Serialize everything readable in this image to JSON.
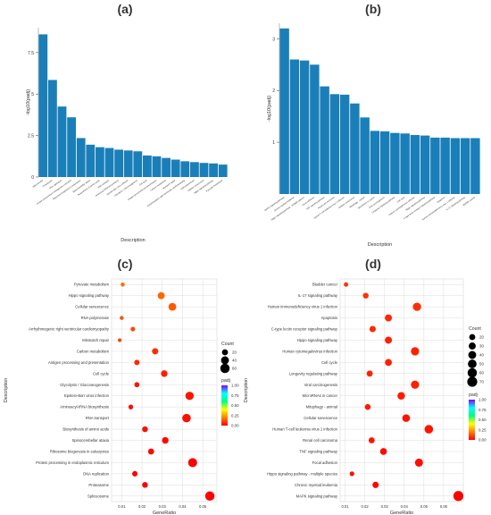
{
  "colors": {
    "bar": "#1a7fb8",
    "panel_bg": "#ebebeb",
    "grid": "#ffffff",
    "grid_fine": "#dddddd",
    "padj_scale": [
      "#ff0000",
      "#ff8000",
      "#ffff00",
      "#00ff80",
      "#00ffff",
      "#8000ff"
    ]
  },
  "chart_data": [
    {
      "panel": "(a)",
      "type": "bar",
      "xlabel": "Description",
      "ylabel": "-log10(padj)",
      "ylim": [
        0,
        9
      ],
      "yticks": [
        0,
        2.5,
        5,
        7.5
      ],
      "grid": false,
      "categories": [
        "Spliceosome",
        "Proteasome",
        "DNA replication",
        "Protein processing in endoplasmic reticulum",
        "Ribosome biogenesis in eukaryotes",
        "Spinocerebellar ataxia",
        "Biosynthesis of amino acids",
        "RNA transport",
        "Aminoacyl-tRNA biosynthesis",
        "Epstein-Barr virus infection",
        "Glycolysis / Gluconeogenesis",
        "Cell cycle",
        "Antigen processing and presentation",
        "Carbon metabolism",
        "Mismatch repair",
        "Arrhythmogenic right ventricular cardiomyopathy",
        "RNA polymerase",
        "Cellular senescence",
        "Hippo signaling pathway",
        "Pyruvate metabolism"
      ],
      "values": [
        8.6,
        5.85,
        4.25,
        3.6,
        2.35,
        1.95,
        1.8,
        1.75,
        1.65,
        1.6,
        1.55,
        1.3,
        1.25,
        1.15,
        1.05,
        0.95,
        0.9,
        0.85,
        0.82,
        0.75
      ]
    },
    {
      "panel": "(b)",
      "type": "bar",
      "xlabel": "Description",
      "ylabel": "-log10(padj)",
      "ylim": [
        0,
        3.3
      ],
      "yticks": [
        1,
        2,
        3
      ],
      "grid": false,
      "categories": [
        "MAPK signaling pathway",
        "Chronic myeloid leukemia",
        "Hippo signaling pathway - multiple species",
        "Focal adhesion",
        "TNF signaling pathway",
        "Renal cell carcinoma",
        "Human T-cell leukemia virus 1 infection",
        "Cellular senescence",
        "Mitophagy - animal",
        "MicroRNAs in cancer",
        "Viral carcinogenesis",
        "Longevity regulating pathway",
        "Cell cycle",
        "Human cytomegalovirus infection",
        "Hippo signaling pathway",
        "C-type lectin receptor signaling pathway",
        "Apoptosis",
        "Human immunodeficiency virus 1 infection",
        "IL-17 signaling pathway",
        "Bladder cancer"
      ],
      "values": [
        3.2,
        2.6,
        2.58,
        2.5,
        2.08,
        1.93,
        1.92,
        1.75,
        1.48,
        1.22,
        1.21,
        1.18,
        1.17,
        1.14,
        1.13,
        1.09,
        1.09,
        1.08,
        1.08,
        1.08
      ]
    },
    {
      "panel": "(c)",
      "type": "scatter",
      "xlabel": "GeneRatio",
      "ylabel": "Description",
      "xlim": [
        0.005,
        0.057
      ],
      "xticks": [
        0.01,
        0.02,
        0.03,
        0.04,
        0.05
      ],
      "legend": {
        "size_title": "Count",
        "size_ticks": [
          20,
          40,
          60
        ],
        "color_title": "padj",
        "color_ticks": [
          "1.00",
          "0.75",
          "0.50",
          "0.25",
          "0.00"
        ]
      },
      "categories": [
        "Pyruvate metabolism",
        "Hippo signaling pathway",
        "Cellular senescence",
        "RNA polymerase",
        "Arrhythmogenic right ventricular cardiomyopathy",
        "Mismatch repair",
        "Carbon metabolism",
        "Antigen processing and presentation",
        "Cell cycle",
        "Glycolysis / Gluconeogenesis",
        "Epstein-Barr virus infection",
        "Aminoacyl-tRNA biosynthesis",
        "RNA transport",
        "Biosynthesis of amino acids",
        "Spinocerebellar ataxia",
        "Ribosome biogenesis in eukaryotes",
        "Protein processing in endoplasmic reticulum",
        "DNA replication",
        "Proteasome",
        "Spliceosome"
      ],
      "x": [
        0.0105,
        0.0295,
        0.035,
        0.01,
        0.0155,
        0.009,
        0.0265,
        0.0175,
        0.031,
        0.0175,
        0.0435,
        0.0145,
        0.042,
        0.0215,
        0.0315,
        0.0245,
        0.045,
        0.0165,
        0.0215,
        0.0535
      ],
      "count": [
        6,
        30,
        38,
        5,
        9,
        4,
        22,
        14,
        25,
        12,
        45,
        10,
        47,
        17,
        25,
        20,
        55,
        15,
        17,
        60
      ],
      "padj": [
        0.17,
        0.16,
        0.14,
        0.12,
        0.11,
        0.09,
        0.07,
        0.06,
        0.05,
        0.03,
        0.03,
        0.02,
        0.02,
        0.02,
        0.01,
        0.01,
        0.0,
        0.0,
        0.0,
        0.0
      ]
    },
    {
      "panel": "(d)",
      "type": "scatter",
      "xlabel": "GeneRatio",
      "ylabel": "Description",
      "xlim": [
        0.0075,
        0.07
      ],
      "xticks": [
        0.01,
        0.02,
        0.03,
        0.04,
        0.05,
        0.06
      ],
      "legend": {
        "size_title": "Count",
        "size_ticks": [
          20,
          30,
          40,
          50,
          60,
          70
        ],
        "color_title": "padj",
        "color_ticks": [
          "1.00",
          "0.75",
          "0.50",
          "0.25",
          "0.00"
        ]
      },
      "categories": [
        "Bladder cancer",
        "IL-17 signaling pathway",
        "Human immunodeficiency virus 1 infection",
        "Apoptosis",
        "C-type lectin receptor signaling pathway",
        "Hippo signaling pathway",
        "Human cytomegalovirus infection",
        "Cell cycle",
        "Longevity regulating pathway",
        "Viral carcinogenesis",
        "MicroRNAs in cancer",
        "Mitophagy - animal",
        "Cellular senescence",
        "Human T-cell leukemia virus 1 infection",
        "Renal cell carcinoma",
        "TNF signaling pathway",
        "Focal adhesion",
        "Hippo signaling pathway - multiple species",
        "Chronic myeloid leukemia",
        "MAPK signaling pathway"
      ],
      "x": [
        0.0105,
        0.0205,
        0.0465,
        0.032,
        0.024,
        0.032,
        0.0455,
        0.032,
        0.0225,
        0.0455,
        0.0385,
        0.0215,
        0.041,
        0.0525,
        0.0235,
        0.0295,
        0.0475,
        0.0135,
        0.0255,
        0.0675
      ],
      "count": [
        8,
        17,
        45,
        30,
        22,
        30,
        44,
        28,
        20,
        44,
        35,
        18,
        37,
        48,
        20,
        27,
        42,
        9,
        22,
        72
      ],
      "padj": [
        0.08,
        0.08,
        0.07,
        0.06,
        0.06,
        0.05,
        0.05,
        0.05,
        0.05,
        0.05,
        0.04,
        0.04,
        0.03,
        0.03,
        0.03,
        0.02,
        0.02,
        0.02,
        0.01,
        0.0
      ]
    }
  ]
}
